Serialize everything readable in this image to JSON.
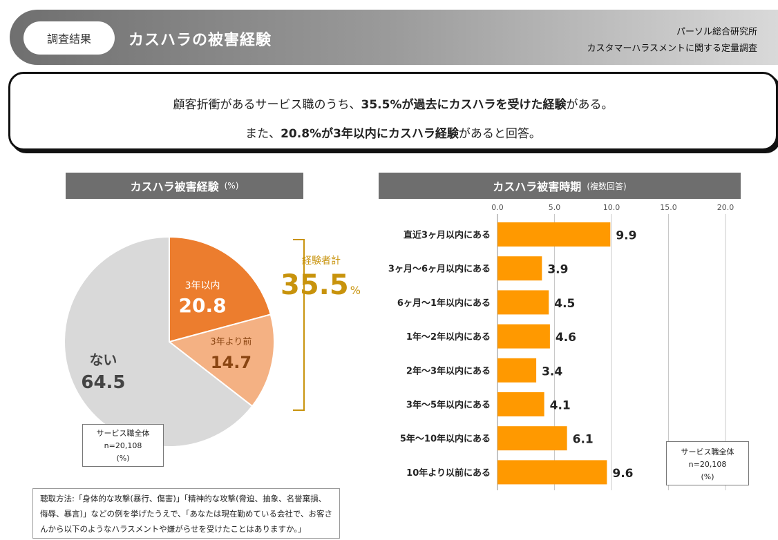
{
  "header": {
    "pill_label": "調査結果",
    "title": "カスハラの被害経験",
    "source_line1": "パーソル総合研究所",
    "source_line2": "カスタマーハラスメントに関する定量調査"
  },
  "summary": {
    "line1_pre": "顧客折衝があるサービス職のうち、",
    "line1_bold": "35.5%が過去にカスハラを受けた経験",
    "line1_post": "がある。",
    "line2_pre": "また、",
    "line2_bold": "20.8%が3年以内にカスハラ経験",
    "line2_post": "があると回答。"
  },
  "pie_panel": {
    "title": "カスハラ被害経験",
    "unit": "(%)",
    "bracket_label": "経験者計",
    "bracket_value": "35.5",
    "bracket_unit": "%",
    "note_line1": "サービス職全体",
    "note_line2": "n=20,108",
    "note_line3": "(%)"
  },
  "bar_panel": {
    "title": "カスハラ被害時期",
    "unit": "(複数回答)",
    "note_line1": "サービス職全体",
    "note_line2": "n=20,108",
    "note_line3": "(%)"
  },
  "method": {
    "text": "聴取方法:「身体的な攻撃(暴行、傷害)」「精神的な攻撃(脅迫、抽象、名誉棄損、侮辱、暴言)」などの例を挙げたうえで、「あなたは現在勤めている会社で、お客さんから以下のようなハラスメントや嫌がらせを受けたことはありますか。」"
  },
  "colors": {
    "pie_recent": "#ec7d2e",
    "pie_before": "#f4b183",
    "pie_none": "#d9d9d9",
    "bar": "#ff9900",
    "gold": "#c8930c"
  },
  "chart_data": [
    {
      "type": "pie",
      "title": "カスハラ被害経験 (%)",
      "slices": [
        {
          "label": "3年以内",
          "value": 20.8
        },
        {
          "label": "3年より前",
          "value": 14.7
        },
        {
          "label": "ない",
          "value": 64.5
        }
      ],
      "total_label": "経験者計",
      "total_value": 35.5
    },
    {
      "type": "bar",
      "orientation": "horizontal",
      "title": "カスハラ被害時期 (複数回答)",
      "categories": [
        "直近3ヶ月以内にある",
        "3ヶ月～6ヶ月以内にある",
        "6ヶ月～1年以内にある",
        "1年～2年以内にある",
        "2年～3年以内にある",
        "3年～5年以内にある",
        "5年～10年以内にある",
        "10年より以前にある"
      ],
      "values": [
        9.9,
        3.9,
        4.5,
        4.6,
        3.4,
        4.1,
        6.1,
        9.6
      ],
      "xlim": [
        0,
        20
      ],
      "ticks": [
        "0.0",
        "5.0",
        "10.0",
        "15.0",
        "20.0"
      ]
    }
  ]
}
